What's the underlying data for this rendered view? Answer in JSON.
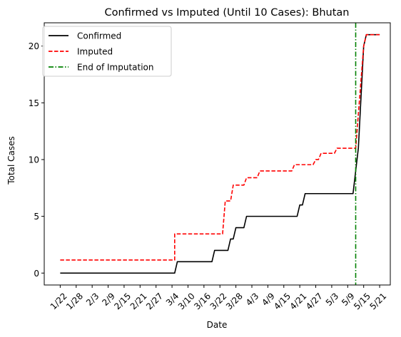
{
  "chart_data": {
    "type": "line",
    "title": "Confirmed vs Imputed (Until 10 Cases): Bhutan",
    "xlabel": "Date",
    "ylabel": "Total Cases",
    "xlim": [
      "2020-01-16",
      "2020-05-25"
    ],
    "ylim": [
      -1.05,
      22.05
    ],
    "yticks": [
      0,
      5,
      10,
      15,
      20
    ],
    "xticks": [
      {
        "date": "2020-01-22",
        "label": "1/22"
      },
      {
        "date": "2020-01-28",
        "label": "1/28"
      },
      {
        "date": "2020-02-03",
        "label": "2/3"
      },
      {
        "date": "2020-02-09",
        "label": "2/9"
      },
      {
        "date": "2020-02-15",
        "label": "2/15"
      },
      {
        "date": "2020-02-21",
        "label": "2/21"
      },
      {
        "date": "2020-02-27",
        "label": "2/27"
      },
      {
        "date": "2020-03-04",
        "label": "3/4"
      },
      {
        "date": "2020-03-10",
        "label": "3/10"
      },
      {
        "date": "2020-03-16",
        "label": "3/16"
      },
      {
        "date": "2020-03-22",
        "label": "3/22"
      },
      {
        "date": "2020-03-28",
        "label": "3/28"
      },
      {
        "date": "2020-04-03",
        "label": "4/3"
      },
      {
        "date": "2020-04-09",
        "label": "4/9"
      },
      {
        "date": "2020-04-15",
        "label": "4/15"
      },
      {
        "date": "2020-04-21",
        "label": "4/21"
      },
      {
        "date": "2020-04-27",
        "label": "4/27"
      },
      {
        "date": "2020-05-03",
        "label": "5/3"
      },
      {
        "date": "2020-05-09",
        "label": "5/9"
      },
      {
        "date": "2020-05-15",
        "label": "5/15"
      },
      {
        "date": "2020-05-21",
        "label": "5/21"
      }
    ],
    "legend_position": "top-left",
    "series": [
      {
        "name": "Confirmed",
        "color": "#000000",
        "style": "solid",
        "points": [
          {
            "date": "2020-01-22",
            "y": 0
          },
          {
            "date": "2020-03-05",
            "y": 0
          },
          {
            "date": "2020-03-06",
            "y": 1
          },
          {
            "date": "2020-03-19",
            "y": 1
          },
          {
            "date": "2020-03-20",
            "y": 2
          },
          {
            "date": "2020-03-25",
            "y": 2
          },
          {
            "date": "2020-03-26",
            "y": 3
          },
          {
            "date": "2020-03-27",
            "y": 3
          },
          {
            "date": "2020-03-28",
            "y": 4
          },
          {
            "date": "2020-03-31",
            "y": 4
          },
          {
            "date": "2020-04-01",
            "y": 5
          },
          {
            "date": "2020-04-20",
            "y": 5
          },
          {
            "date": "2020-04-21",
            "y": 6
          },
          {
            "date": "2020-04-22",
            "y": 6
          },
          {
            "date": "2020-04-23",
            "y": 7
          },
          {
            "date": "2020-05-11",
            "y": 7
          },
          {
            "date": "2020-05-13",
            "y": 11
          },
          {
            "date": "2020-05-15",
            "y": 20
          },
          {
            "date": "2020-05-16",
            "y": 21
          },
          {
            "date": "2020-05-21",
            "y": 21
          }
        ]
      },
      {
        "name": "Imputed",
        "color": "#ff0000",
        "style": "dashed",
        "points": [
          {
            "date": "2020-01-22",
            "y": 1.15
          },
          {
            "date": "2020-03-05",
            "y": 1.15
          },
          {
            "date": "2020-03-05",
            "y": 3.45
          },
          {
            "date": "2020-03-23",
            "y": 3.45
          },
          {
            "date": "2020-03-24",
            "y": 6.35
          },
          {
            "date": "2020-03-26",
            "y": 6.35
          },
          {
            "date": "2020-03-27",
            "y": 7.75
          },
          {
            "date": "2020-03-31",
            "y": 7.75
          },
          {
            "date": "2020-04-01",
            "y": 8.4
          },
          {
            "date": "2020-04-05",
            "y": 8.4
          },
          {
            "date": "2020-04-06",
            "y": 9.0
          },
          {
            "date": "2020-04-18",
            "y": 9.0
          },
          {
            "date": "2020-04-19",
            "y": 9.55
          },
          {
            "date": "2020-04-26",
            "y": 9.55
          },
          {
            "date": "2020-04-27",
            "y": 10.0
          },
          {
            "date": "2020-04-28",
            "y": 10.0
          },
          {
            "date": "2020-04-29",
            "y": 10.55
          },
          {
            "date": "2020-05-04",
            "y": 10.55
          },
          {
            "date": "2020-05-05",
            "y": 11.0
          },
          {
            "date": "2020-05-12",
            "y": 11.0
          },
          {
            "date": "2020-05-15",
            "y": 20
          },
          {
            "date": "2020-05-16",
            "y": 21
          },
          {
            "date": "2020-05-21",
            "y": 21
          }
        ]
      }
    ],
    "vlines": [
      {
        "name": "End of Imputation",
        "date": "2020-05-12",
        "color": "#008000",
        "style": "dashdot"
      }
    ]
  }
}
